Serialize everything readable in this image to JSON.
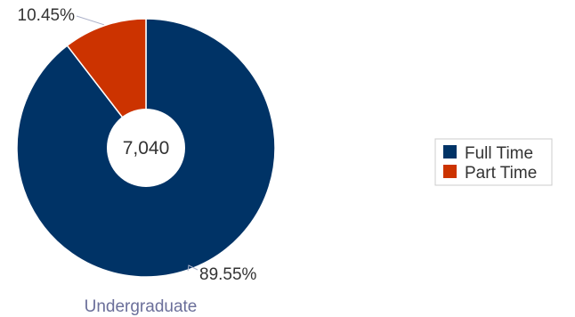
{
  "chart_data": {
    "type": "pie",
    "donut": true,
    "center_label": "7,040",
    "caption": "Undergraduate",
    "legend_position": "right",
    "slices": [
      {
        "name": "Full Time",
        "value": 89.55,
        "label": "89.55%",
        "color": "#003366"
      },
      {
        "name": "Part Time",
        "value": 10.45,
        "label": "10.45%",
        "color": "#cc3300"
      }
    ]
  }
}
